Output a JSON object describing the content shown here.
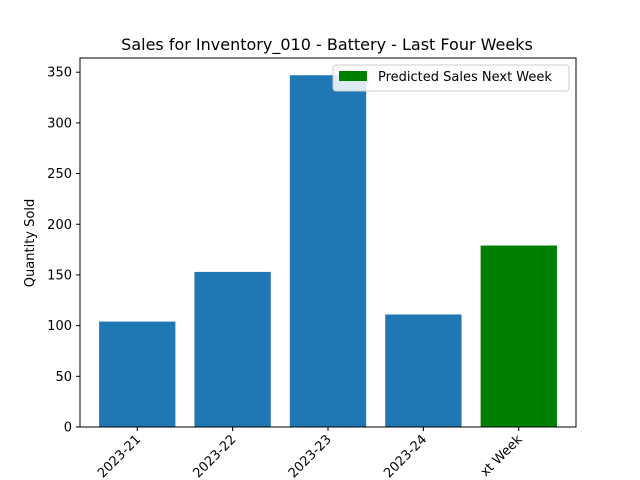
{
  "chart_data": {
    "type": "bar",
    "title": "Sales for Inventory_010 - Battery - Last Four Weeks",
    "xlabel": "",
    "ylabel": "Quantity Sold",
    "categories": [
      "2023-21",
      "2023-22",
      "2023-23",
      "2023-24",
      "Next Week"
    ],
    "tick_labels_visible": [
      "2023-21",
      "2023-22",
      "2023-23",
      "2023-24",
      "xt Week"
    ],
    "values": [
      104,
      153,
      347,
      111,
      179
    ],
    "bar_colors": [
      "#1f77b4",
      "#1f77b4",
      "#1f77b4",
      "#1f77b4",
      "#008000"
    ],
    "ylim": [
      0,
      350
    ],
    "yticks": [
      0,
      50,
      100,
      150,
      200,
      250,
      300,
      350
    ],
    "grid": false,
    "legend": {
      "placement": "upper right",
      "entries": [
        {
          "label": "Predicted Sales Next Week",
          "color": "#008000"
        }
      ]
    }
  }
}
